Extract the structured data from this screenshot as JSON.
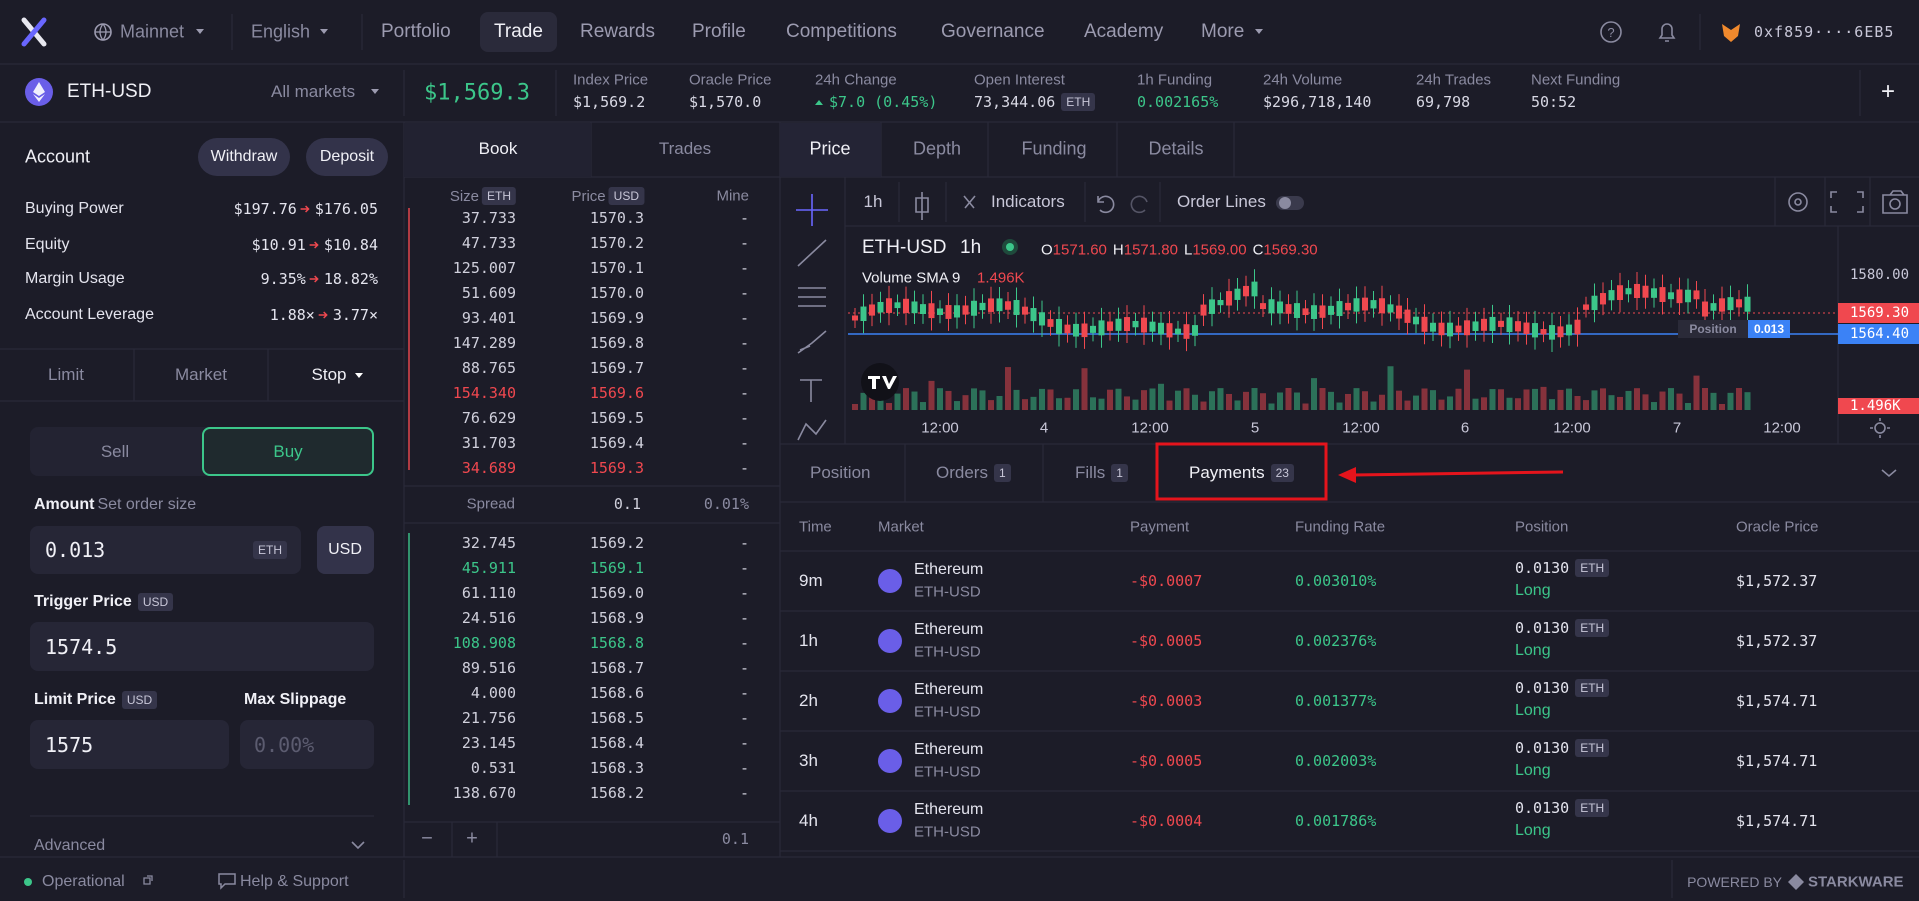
{
  "nav": {
    "network": "Mainnet",
    "language": "English",
    "links": [
      "Portfolio",
      "Trade",
      "Rewards",
      "Profile",
      "Competitions",
      "Governance",
      "Academy",
      "More"
    ],
    "wallet": "0xf859····6EB5"
  },
  "market": {
    "symbol": "ETH-USD",
    "selector": "All markets",
    "price": "$1,569.3",
    "add": "+",
    "stats": [
      {
        "label": "Index Price",
        "value": "$1,569.2"
      },
      {
        "label": "Oracle Price",
        "value": "$1,570.0"
      },
      {
        "label": "24h Change",
        "value": "$7.0 (0.45%)",
        "color": "#3cc68a"
      },
      {
        "label": "Open Interest",
        "value": "73,344.06",
        "unit": "ETH"
      },
      {
        "label": "1h Funding",
        "value": "0.002165%",
        "color": "#3cc68a"
      },
      {
        "label": "24h Volume",
        "value": "$296,718,140"
      },
      {
        "label": "24h Trades",
        "value": "69,798"
      },
      {
        "label": "Next Funding",
        "value": "50:52"
      }
    ]
  },
  "account": {
    "title": "Account",
    "buttons": [
      "Withdraw",
      "Deposit"
    ],
    "rows": [
      {
        "label": "Buying Power",
        "from": "$197.76",
        "to": "$176.05"
      },
      {
        "label": "Equity",
        "from": "$10.91",
        "to": "$10.84"
      },
      {
        "label": "Margin Usage",
        "from": "9.35%",
        "to": "18.82%"
      },
      {
        "label": "Account Leverage",
        "from": "1.88×",
        "to": "3.77×"
      }
    ]
  },
  "order_form": {
    "types": [
      "Limit",
      "Market",
      "Stop"
    ],
    "sides": [
      "Sell",
      "Buy"
    ],
    "amount_label": "Amount",
    "amount_hint": "Set order size",
    "amount": "0.013",
    "amount_unit": "ETH",
    "currency_toggle": "USD",
    "trigger_label": "Trigger Price",
    "trigger_unit": "USD",
    "trigger": "1574.5",
    "limit_label": "Limit Price",
    "limit_unit": "USD",
    "limit": "1575",
    "slippage_label": "Max Slippage",
    "slippage_placeholder": "0.00%",
    "advanced": "Advanced"
  },
  "order_book": {
    "tabs": [
      "Book",
      "Trades"
    ],
    "size_label": "Size",
    "size_unit": "ETH",
    "price_label": "Price",
    "price_unit": "USD",
    "mine_label": "Mine",
    "asks": [
      {
        "size": "37.733",
        "price": "1570.3",
        "mine": "-"
      },
      {
        "size": "47.733",
        "price": "1570.2",
        "mine": "-"
      },
      {
        "size": "125.007",
        "price": "1570.1",
        "mine": "-"
      },
      {
        "size": "51.609",
        "price": "1570.0",
        "mine": "-"
      },
      {
        "size": "93.401",
        "price": "1569.9",
        "mine": "-"
      },
      {
        "size": "147.289",
        "price": "1569.8",
        "mine": "-"
      },
      {
        "size": "88.765",
        "price": "1569.7",
        "mine": "-"
      },
      {
        "size": "154.340",
        "price": "1569.6",
        "mine": "-",
        "color": "#f0484f"
      },
      {
        "size": "76.629",
        "price": "1569.5",
        "mine": "-"
      },
      {
        "size": "31.703",
        "price": "1569.4",
        "mine": "-"
      },
      {
        "size": "34.689",
        "price": "1569.3",
        "mine": "-",
        "color": "#f0484f"
      }
    ],
    "spread": {
      "label": "Spread",
      "value": "0.1",
      "percent": "0.01%"
    },
    "bids": [
      {
        "size": "32.745",
        "price": "1569.2",
        "mine": "-"
      },
      {
        "size": "45.911",
        "price": "1569.1",
        "mine": "-",
        "color": "#3cc68a"
      },
      {
        "size": "61.110",
        "price": "1569.0",
        "mine": "-"
      },
      {
        "size": "24.516",
        "price": "1568.9",
        "mine": "-"
      },
      {
        "size": "108.908",
        "price": "1568.8",
        "mine": "-",
        "color": "#3cc68a"
      },
      {
        "size": "89.516",
        "price": "1568.7",
        "mine": "-"
      },
      {
        "size": "4.000",
        "price": "1568.6",
        "mine": "-"
      },
      {
        "size": "21.756",
        "price": "1568.5",
        "mine": "-"
      },
      {
        "size": "23.145",
        "price": "1568.4",
        "mine": "-"
      },
      {
        "size": "0.531",
        "price": "1568.3",
        "mine": "-"
      },
      {
        "size": "138.670",
        "price": "1568.2",
        "mine": "-"
      }
    ],
    "zoom_out": "−",
    "zoom_in": "+",
    "grouping": "0.1"
  },
  "chart": {
    "tabs": [
      "Price",
      "Depth",
      "Funding",
      "Details"
    ],
    "interval": "1h",
    "indicators": "Indicators",
    "order_lines": "Order Lines",
    "symbol": "ETH-USD",
    "legend_interval": "1h",
    "ohlc": [
      {
        "key": "O",
        "value": "1571.60"
      },
      {
        "key": "H",
        "value": "1571.80"
      },
      {
        "key": "L",
        "value": "1569.00"
      },
      {
        "key": "C",
        "value": "1569.30"
      }
    ],
    "volume_label": "Volume SMA 9",
    "volume_value": "1.496K",
    "price_labels": [
      "1580.00",
      "1569.30",
      "1564.40",
      "1.496K"
    ],
    "time_labels": [
      "12:00",
      "4",
      "12:00",
      "5",
      "12:00",
      "6",
      "12:00",
      "7",
      "12:00"
    ],
    "position_tag": "Position",
    "position_size": "0.013"
  },
  "positions": {
    "tabs": [
      {
        "label": "Position"
      },
      {
        "label": "Orders",
        "count": "1"
      },
      {
        "label": "Fills",
        "count": "1"
      },
      {
        "label": "Payments",
        "count": "23"
      }
    ],
    "columns": [
      "Time",
      "Market",
      "Payment",
      "Funding Rate",
      "Position",
      "Oracle Price"
    ],
    "rows": [
      {
        "time": "9m",
        "asset": "Ethereum",
        "market": "ETH-USD",
        "payment": "-$0.0007",
        "funding_rate": "0.003010%",
        "size": "0.0130",
        "unit": "ETH",
        "side": "Long",
        "oracle_price": "$1,572.37"
      },
      {
        "time": "1h",
        "asset": "Ethereum",
        "market": "ETH-USD",
        "payment": "-$0.0005",
        "funding_rate": "0.002376%",
        "size": "0.0130",
        "unit": "ETH",
        "side": "Long",
        "oracle_price": "$1,572.37"
      },
      {
        "time": "2h",
        "asset": "Ethereum",
        "market": "ETH-USD",
        "payment": "-$0.0003",
        "funding_rate": "0.001377%",
        "size": "0.0130",
        "unit": "ETH",
        "side": "Long",
        "oracle_price": "$1,574.71"
      },
      {
        "time": "3h",
        "asset": "Ethereum",
        "market": "ETH-USD",
        "payment": "-$0.0005",
        "funding_rate": "0.002003%",
        "size": "0.0130",
        "unit": "ETH",
        "side": "Long",
        "oracle_price": "$1,574.71"
      },
      {
        "time": "4h",
        "asset": "Ethereum",
        "market": "ETH-USD",
        "payment": "-$0.0004",
        "funding_rate": "0.001786%",
        "size": "0.0130",
        "unit": "ETH",
        "side": "Long",
        "oracle_price": "$1,574.71"
      }
    ]
  },
  "footer": {
    "status": "Operational",
    "help": "Help & Support",
    "powered": "POWERED BY",
    "brand": "STARKWARE"
  }
}
